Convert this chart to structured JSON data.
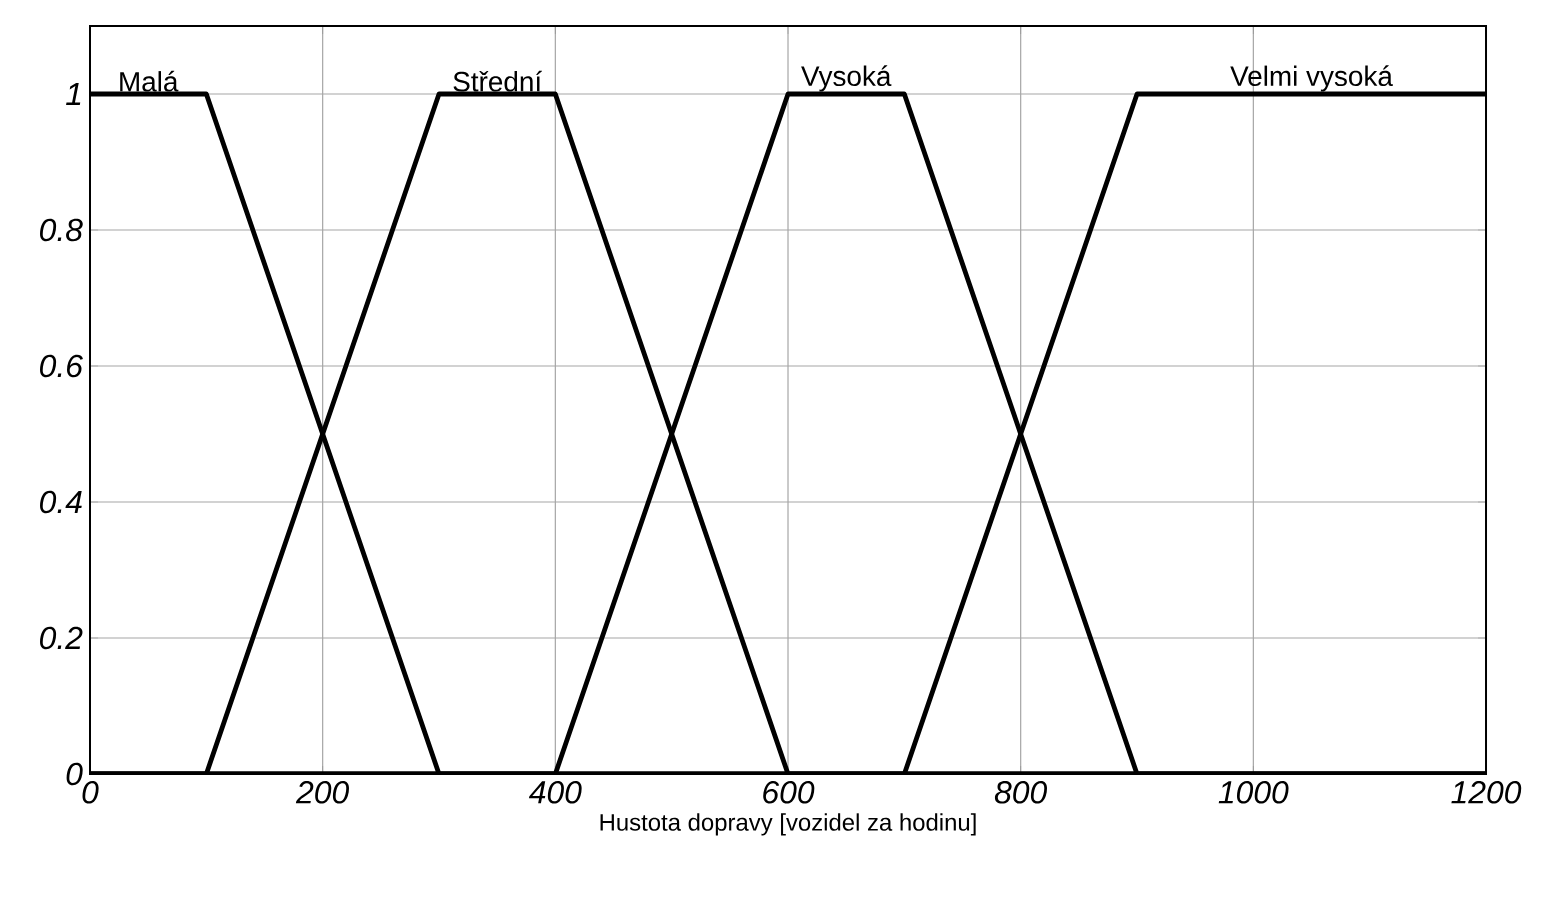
{
  "chart_data": {
    "type": "line",
    "xlabel": "Hustota dopravy [vozidel za hodinu]",
    "xlim": [
      0,
      1200
    ],
    "ylim": [
      0,
      1.1
    ],
    "xticks": [
      0,
      200,
      400,
      600,
      800,
      1000,
      1200
    ],
    "yticks": [
      0,
      0.2,
      0.4,
      0.6,
      0.8,
      1
    ],
    "grid": true,
    "legend": false,
    "marker": "none",
    "line_style": "solid",
    "series": [
      {
        "name": "Malá",
        "color": "#000000",
        "x": [
          0,
          100,
          300,
          1200
        ],
        "values": [
          1,
          1,
          0,
          0
        ]
      },
      {
        "name": "Střední",
        "color": "#000000",
        "x": [
          0,
          100,
          300,
          400,
          600,
          1200
        ],
        "values": [
          0,
          0,
          1,
          1,
          0,
          0
        ]
      },
      {
        "name": "Vysoká",
        "color": "#000000",
        "x": [
          0,
          400,
          600,
          700,
          900,
          1200
        ],
        "values": [
          0,
          0,
          1,
          1,
          0,
          0
        ]
      },
      {
        "name": "Velmi vysoká",
        "color": "#000000",
        "x": [
          0,
          700,
          900,
          1200
        ],
        "values": [
          0,
          0,
          1,
          1
        ]
      }
    ]
  }
}
